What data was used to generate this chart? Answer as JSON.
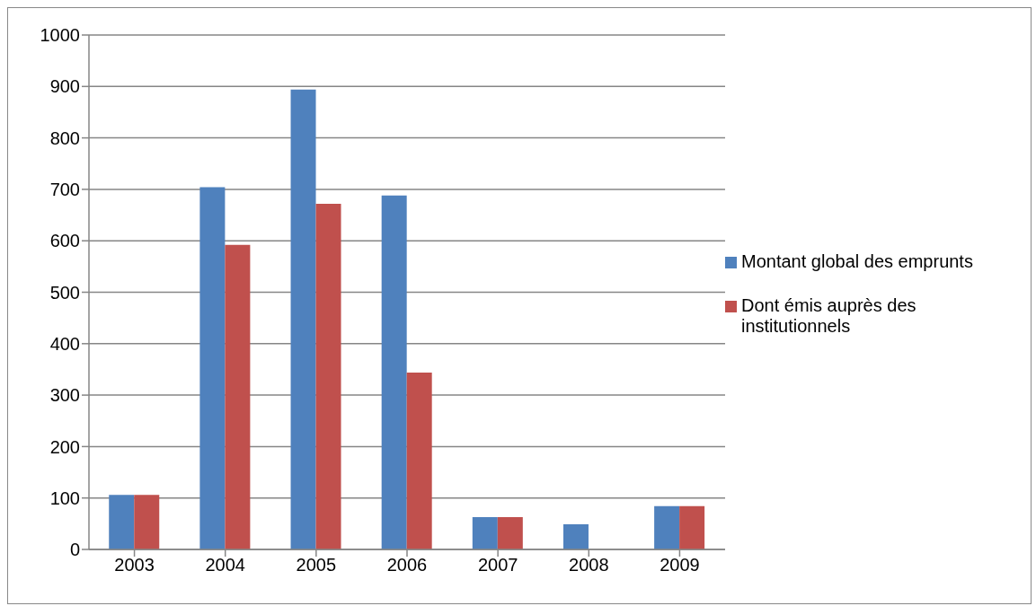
{
  "chart_data": {
    "type": "bar",
    "categories": [
      "2003",
      "2004",
      "2005",
      "2006",
      "2007",
      "2008",
      "2009"
    ],
    "series": [
      {
        "name": "Montant global des emprunts",
        "color": "#4f81bd",
        "values": [
          106,
          704,
          894,
          688,
          63,
          49,
          84
        ]
      },
      {
        "name": "Dont émis auprès des institutionnels",
        "color": "#c0504d",
        "values": [
          106,
          592,
          672,
          344,
          63,
          null,
          84
        ]
      }
    ],
    "ylim": [
      0,
      1000
    ],
    "yticks": [
      0,
      100,
      200,
      300,
      400,
      500,
      600,
      700,
      800,
      900,
      1000
    ],
    "grid": "y",
    "legend": "right"
  }
}
